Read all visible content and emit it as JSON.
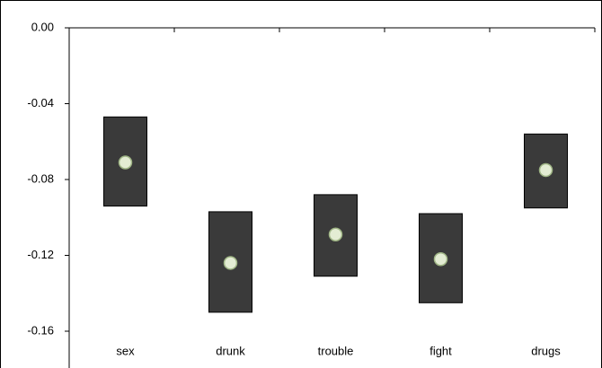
{
  "chart_data": {
    "type": "range",
    "categories": [
      "sex",
      "drunk",
      "trouble",
      "fight",
      "drugs"
    ],
    "values": [
      -0.071,
      -0.124,
      -0.109,
      -0.122,
      -0.075
    ],
    "low": [
      -0.094,
      -0.15,
      -0.131,
      -0.145,
      -0.095
    ],
    "high": [
      -0.047,
      -0.097,
      -0.088,
      -0.098,
      -0.056
    ],
    "color": "#3a3a3a",
    "point_color": "#e3ecd3",
    "ylim": [
      -0.16,
      0
    ],
    "yticks": [
      {
        "value": 0,
        "label": "0.00"
      },
      {
        "value": -0.04,
        "label": "-0.04"
      },
      {
        "value": -0.08,
        "label": "-0.08"
      },
      {
        "value": -0.12,
        "label": "-0.12"
      },
      {
        "value": -0.16,
        "label": "-0.16"
      }
    ],
    "grid": false
  }
}
